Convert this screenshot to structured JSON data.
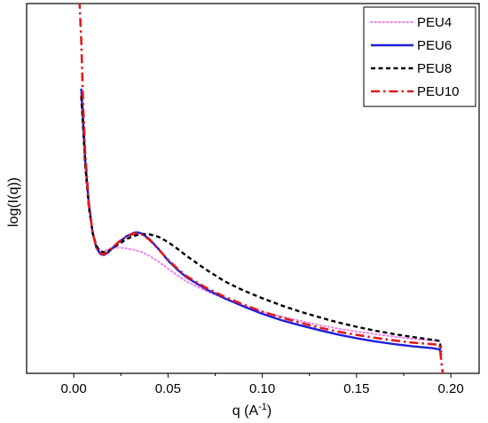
{
  "chart_data": {
    "type": "line",
    "title": "",
    "xlabel": "q (A",
    "xlabel_sup": "-1",
    "xlabel_tail": ")",
    "ylabel": "log(I(q))",
    "xlim": [
      -0.025,
      0.215
    ],
    "ylim": [
      0,
      1
    ],
    "y_ticks_shown": false,
    "x_ticks": [
      "0.00",
      "0.05",
      "0.10",
      "0.15",
      "0.20"
    ],
    "x_tick_values": [
      0.0,
      0.05,
      0.1,
      0.15,
      0.2
    ],
    "grid": false,
    "legend_position": "top-right",
    "note": "y values are relative log intensity (axis unlabeled)",
    "series": [
      {
        "name": "PEU4",
        "color": "#ee82ee",
        "style": "dotted",
        "x": [
          0.004,
          0.005,
          0.006,
          0.008,
          0.01,
          0.012,
          0.014,
          0.016,
          0.018,
          0.02,
          0.024,
          0.028,
          0.032,
          0.036,
          0.04,
          0.045,
          0.05,
          0.055,
          0.06,
          0.07,
          0.08,
          0.09,
          0.1,
          0.11,
          0.12,
          0.13,
          0.14,
          0.15,
          0.16,
          0.17,
          0.18,
          0.19,
          0.194,
          0.195
        ],
        "y": [
          0.74,
          0.65,
          0.56,
          0.45,
          0.38,
          0.345,
          0.33,
          0.33,
          0.335,
          0.338,
          0.34,
          0.338,
          0.334,
          0.328,
          0.318,
          0.302,
          0.283,
          0.265,
          0.248,
          0.223,
          0.202,
          0.183,
          0.167,
          0.154,
          0.142,
          0.131,
          0.121,
          0.113,
          0.106,
          0.099,
          0.093,
          0.089,
          0.087,
          0.062
        ]
      },
      {
        "name": "PEU6",
        "color": "#1e1ed8",
        "style": "solid",
        "x": [
          0.004,
          0.005,
          0.006,
          0.008,
          0.01,
          0.012,
          0.014,
          0.016,
          0.018,
          0.02,
          0.024,
          0.028,
          0.032,
          0.034,
          0.036,
          0.04,
          0.045,
          0.05,
          0.055,
          0.06,
          0.07,
          0.08,
          0.09,
          0.1,
          0.11,
          0.12,
          0.13,
          0.14,
          0.15,
          0.16,
          0.17,
          0.18,
          0.19,
          0.194,
          0.195
        ],
        "y": [
          0.77,
          0.68,
          0.58,
          0.46,
          0.38,
          0.34,
          0.323,
          0.32,
          0.326,
          0.336,
          0.355,
          0.371,
          0.38,
          0.381,
          0.378,
          0.364,
          0.336,
          0.305,
          0.28,
          0.259,
          0.228,
          0.203,
          0.181,
          0.161,
          0.144,
          0.13,
          0.117,
          0.105,
          0.095,
          0.086,
          0.079,
          0.073,
          0.068,
          0.065,
          0.048
        ]
      },
      {
        "name": "PEU8",
        "color": "#000000",
        "style": "dashed",
        "x": [
          0.004,
          0.005,
          0.006,
          0.008,
          0.01,
          0.012,
          0.014,
          0.016,
          0.018,
          0.02,
          0.024,
          0.028,
          0.032,
          0.036,
          0.04,
          0.045,
          0.05,
          0.055,
          0.06,
          0.07,
          0.08,
          0.09,
          0.1,
          0.11,
          0.12,
          0.13,
          0.14,
          0.15,
          0.16,
          0.17,
          0.18,
          0.19,
          0.194,
          0.195
        ],
        "y": [
          0.75,
          0.66,
          0.57,
          0.45,
          0.38,
          0.345,
          0.33,
          0.327,
          0.33,
          0.336,
          0.35,
          0.363,
          0.372,
          0.377,
          0.376,
          0.369,
          0.355,
          0.337,
          0.317,
          0.281,
          0.249,
          0.224,
          0.203,
          0.184,
          0.167,
          0.152,
          0.138,
          0.126,
          0.115,
          0.106,
          0.098,
          0.091,
          0.088,
          0.058
        ]
      },
      {
        "name": "PEU10",
        "color": "#e31a1a",
        "style": "dashdot",
        "x": [
          0.003,
          0.004,
          0.005,
          0.006,
          0.008,
          0.01,
          0.012,
          0.014,
          0.016,
          0.018,
          0.02,
          0.024,
          0.028,
          0.032,
          0.034,
          0.036,
          0.04,
          0.045,
          0.05,
          0.055,
          0.06,
          0.07,
          0.08,
          0.09,
          0.1,
          0.11,
          0.12,
          0.13,
          0.14,
          0.15,
          0.16,
          0.17,
          0.18,
          0.19,
          0.194,
          0.195,
          0.196
        ],
        "y": [
          1.01,
          0.9,
          0.72,
          0.6,
          0.46,
          0.38,
          0.34,
          0.325,
          0.322,
          0.328,
          0.338,
          0.356,
          0.37,
          0.378,
          0.379,
          0.376,
          0.362,
          0.335,
          0.307,
          0.283,
          0.262,
          0.232,
          0.207,
          0.186,
          0.167,
          0.151,
          0.137,
          0.124,
          0.113,
          0.104,
          0.096,
          0.089,
          0.083,
          0.079,
          0.077,
          0.03,
          -0.01
        ]
      }
    ]
  }
}
